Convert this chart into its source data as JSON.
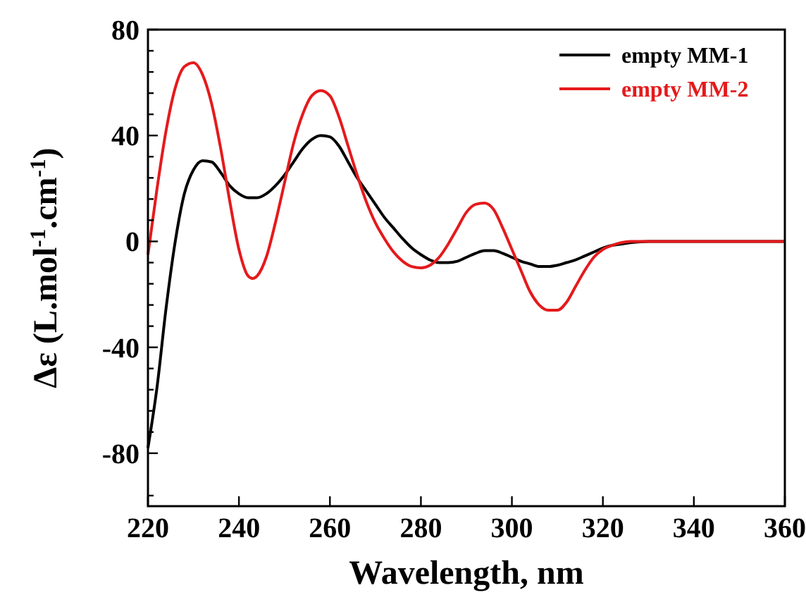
{
  "chart_data": {
    "type": "line",
    "xlabel": "Wavelength, nm",
    "ylabel": "Δε (L.mol$^{-1}$.cm$^{-1}$)",
    "xlim": [
      220,
      360
    ],
    "xticks": [
      220,
      240,
      260,
      280,
      300,
      320,
      340,
      360
    ],
    "ylim": [
      -100,
      80
    ],
    "yticks": [
      {
        "value": -96,
        "label": null
      },
      -80,
      {
        "value": -72,
        "label": null
      },
      {
        "value": -64,
        "label": null
      },
      {
        "value": -56,
        "label": null
      },
      {
        "value": -48,
        "label": null
      },
      -40,
      {
        "value": -32,
        "label": null
      },
      {
        "value": -24,
        "label": null
      },
      {
        "value": -16,
        "label": null
      },
      {
        "value": -8,
        "label": null
      },
      0,
      {
        "value": 8,
        "label": null
      },
      {
        "value": 16,
        "label": null
      },
      {
        "value": 24,
        "label": null
      },
      {
        "value": 32,
        "label": null
      },
      40,
      {
        "value": 48,
        "label": null
      },
      {
        "value": 56,
        "label": null
      },
      {
        "value": 64,
        "label": null
      },
      {
        "value": 72,
        "label": null
      },
      80
    ],
    "grid": false,
    "legend": "top right",
    "line_style": "solid",
    "series": [
      {
        "name": "empty MM-1",
        "color": "#000000",
        "x": [
          220,
          222,
          224,
          226,
          228,
          230,
          232,
          234,
          236,
          238,
          240,
          242,
          244,
          246,
          248,
          250,
          252,
          254,
          256,
          258,
          260,
          262,
          264,
          266,
          268,
          270,
          272,
          274,
          276,
          278,
          280,
          282,
          284,
          286,
          288,
          290,
          292,
          294,
          296,
          298,
          300,
          302,
          304,
          306,
          308,
          310,
          312,
          314,
          316,
          318,
          320,
          322,
          324,
          326,
          330,
          340,
          350,
          360
        ],
        "values": [
          -78,
          -55,
          -25,
          0,
          18,
          27,
          30.5,
          30,
          26,
          21,
          18,
          16.5,
          16.5,
          18,
          21,
          25,
          30,
          35,
          38.5,
          40,
          39.5,
          36,
          30,
          24,
          19,
          14,
          9,
          5,
          1,
          -2.5,
          -5,
          -7,
          -8,
          -8,
          -7.5,
          -6,
          -4.5,
          -3.5,
          -3.5,
          -4.5,
          -6,
          -7.5,
          -8.5,
          -9.5,
          -9.5,
          -9,
          -8,
          -7,
          -5.5,
          -4,
          -2.5,
          -1.5,
          -1,
          -0.5,
          0,
          0,
          0,
          0
        ]
      },
      {
        "name": "empty MM-2",
        "color": "#e41a1c",
        "x": [
          220,
          222,
          224,
          226,
          228,
          230,
          232,
          234,
          236,
          238,
          240,
          242,
          243,
          244,
          246,
          248,
          250,
          252,
          254,
          256,
          258,
          260,
          262,
          264,
          266,
          268,
          270,
          272,
          274,
          276,
          278,
          280,
          282,
          284,
          286,
          288,
          290,
          292,
          294,
          296,
          298,
          300,
          302,
          304,
          306,
          308,
          310,
          312,
          314,
          316,
          318,
          320,
          322,
          324,
          326,
          330,
          340,
          350,
          360
        ],
        "values": [
          -5,
          20,
          42,
          58,
          66,
          67.5,
          63,
          52,
          35,
          15,
          -3,
          -13,
          -14,
          -13,
          -6,
          7,
          22,
          37,
          48,
          55,
          57,
          55,
          47,
          36,
          25,
          15,
          7,
          1,
          -4,
          -7.5,
          -9.5,
          -10,
          -9,
          -6,
          -1,
          5,
          11,
          14,
          14.5,
          12,
          5,
          -3,
          -11,
          -19,
          -24,
          -26,
          -26,
          -23,
          -17,
          -11,
          -6,
          -3,
          -1.5,
          -0.5,
          0,
          0,
          0,
          0,
          0
        ]
      }
    ]
  }
}
